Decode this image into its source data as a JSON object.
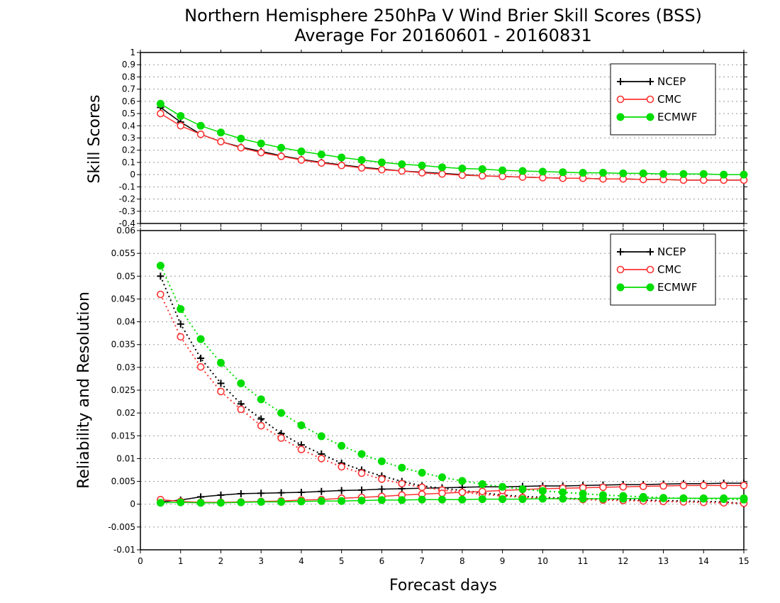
{
  "chart_data": [
    {
      "type": "line",
      "title_line1": "Northern Hemisphere 250hPa V Wind Brier Skill Scores (BSS)",
      "title_line2": "Average For 20160601 - 20160831",
      "ylabel": "Skill Scores",
      "xlabel": "",
      "ylim": [
        -0.4,
        1
      ],
      "xlim": [
        0,
        15
      ],
      "grid": true,
      "grid_style": "dotted horizontal",
      "legend_position": "top-right",
      "y_ticks": [
        "1",
        "0.9",
        "0.8",
        "0.7",
        "0.6",
        "0.5",
        "0.4",
        "0.3",
        "0.2",
        "0.1",
        "0",
        "-0.1",
        "-0.2",
        "-0.3",
        "-0.4"
      ],
      "x": [
        0.5,
        1,
        1.5,
        2,
        2.5,
        3,
        3.5,
        4,
        4.5,
        5,
        5.5,
        6,
        6.5,
        7,
        7.5,
        8,
        8.5,
        9,
        9.5,
        10,
        10.5,
        11,
        11.5,
        12,
        12.5,
        13,
        13.5,
        14,
        14.5,
        15
      ],
      "series": [
        {
          "name": "NCEP",
          "color": "#000000",
          "marker": "plus",
          "style": "solid",
          "values": [
            0.55,
            0.43,
            0.33,
            0.27,
            0.225,
            0.19,
            0.155,
            0.125,
            0.1,
            0.08,
            0.06,
            0.045,
            0.03,
            0.02,
            0.01,
            0.0,
            -0.01,
            -0.015,
            -0.02,
            -0.025,
            -0.03,
            -0.03,
            -0.035,
            -0.035,
            -0.04,
            -0.04,
            -0.045,
            -0.045,
            -0.045,
            -0.045
          ]
        },
        {
          "name": "CMC",
          "color": "#ff3333",
          "marker": "circle-open",
          "style": "solid",
          "values": [
            0.5,
            0.4,
            0.33,
            0.27,
            0.22,
            0.18,
            0.15,
            0.12,
            0.095,
            0.075,
            0.055,
            0.04,
            0.03,
            0.015,
            0.005,
            -0.005,
            -0.01,
            -0.015,
            -0.02,
            -0.025,
            -0.03,
            -0.03,
            -0.035,
            -0.035,
            -0.04,
            -0.04,
            -0.045,
            -0.045,
            -0.045,
            -0.045
          ]
        },
        {
          "name": "ECMWF",
          "color": "#00dd00",
          "marker": "circle-filled",
          "style": "solid",
          "values": [
            0.58,
            0.48,
            0.4,
            0.345,
            0.295,
            0.255,
            0.22,
            0.19,
            0.165,
            0.14,
            0.12,
            0.1,
            0.085,
            0.075,
            0.06,
            0.05,
            0.045,
            0.035,
            0.03,
            0.025,
            0.02,
            0.015,
            0.015,
            0.01,
            0.01,
            0.005,
            0.005,
            0.005,
            0.0,
            0.0
          ]
        }
      ]
    },
    {
      "type": "line",
      "ylabel": "Reliability and Resolution",
      "xlabel": "Forecast days",
      "ylim": [
        -0.01,
        0.06
      ],
      "xlim": [
        0,
        15
      ],
      "grid": true,
      "grid_style": "dotted horizontal",
      "legend_position": "top-right",
      "y_ticks": [
        "0.06",
        "0.055",
        "0.05",
        "0.045",
        "0.04",
        "0.035",
        "0.03",
        "0.025",
        "0.02",
        "0.015",
        "0.01",
        "0.005",
        "0",
        "-0.005",
        "-0.01"
      ],
      "x_ticks": [
        "0",
        "1",
        "2",
        "3",
        "4",
        "5",
        "6",
        "7",
        "8",
        "9",
        "10",
        "11",
        "12",
        "13",
        "14",
        "15"
      ],
      "x": [
        0.5,
        1,
        1.5,
        2,
        2.5,
        3,
        3.5,
        4,
        4.5,
        5,
        5.5,
        6,
        6.5,
        7,
        7.5,
        8,
        8.5,
        9,
        9.5,
        10,
        10.5,
        11,
        11.5,
        12,
        12.5,
        13,
        13.5,
        14,
        14.5,
        15
      ],
      "legend": [
        {
          "name": "NCEP",
          "color": "#000000",
          "marker": "plus"
        },
        {
          "name": "CMC",
          "color": "#ff3333",
          "marker": "circle-open"
        },
        {
          "name": "ECMWF",
          "color": "#00dd00",
          "marker": "circle-filled"
        }
      ],
      "series": [
        {
          "name": "NCEP",
          "color": "#000000",
          "marker": "plus",
          "style": "dotted",
          "kind": "reliability",
          "values": [
            0.05,
            0.0395,
            0.032,
            0.0265,
            0.022,
            0.0187,
            0.0155,
            0.013,
            0.011,
            0.009,
            0.0075,
            0.0062,
            0.005,
            0.004,
            0.0035,
            0.003,
            0.0025,
            0.002,
            0.0017,
            0.0015,
            0.0013,
            0.0012,
            0.0011,
            0.001,
            0.0009,
            0.0008,
            0.0007,
            0.0006,
            0.0005,
            0.0001
          ]
        },
        {
          "name": "NCEP",
          "color": "#000000",
          "marker": "plus",
          "style": "solid",
          "kind": "resolution",
          "values": [
            0.0005,
            0.0009,
            0.0016,
            0.002,
            0.0023,
            0.0024,
            0.0025,
            0.0026,
            0.0028,
            0.003,
            0.0031,
            0.0033,
            0.0034,
            0.0035,
            0.0036,
            0.0037,
            0.0038,
            0.0038,
            0.0039,
            0.004,
            0.004,
            0.0041,
            0.0042,
            0.0043,
            0.0043,
            0.0044,
            0.0045,
            0.0045,
            0.0046,
            0.0046
          ]
        },
        {
          "name": "CMC",
          "color": "#ff3333",
          "marker": "circle-open",
          "style": "dotted",
          "kind": "reliability",
          "values": [
            0.046,
            0.0367,
            0.0301,
            0.0247,
            0.0208,
            0.0172,
            0.0145,
            0.012,
            0.01,
            0.0082,
            0.0068,
            0.0055,
            0.0045,
            0.0037,
            0.0031,
            0.0026,
            0.0022,
            0.0018,
            0.0015,
            0.0013,
            0.0012,
            0.001,
            0.0009,
            0.0008,
            0.0007,
            0.0006,
            0.0005,
            0.0004,
            0.0003,
            0.0002
          ]
        },
        {
          "name": "CMC",
          "color": "#ff3333",
          "marker": "circle-open",
          "style": "solid",
          "kind": "resolution",
          "values": [
            0.001,
            0.0006,
            0.0004,
            0.0004,
            0.0005,
            0.0006,
            0.0007,
            0.0009,
            0.001,
            0.0013,
            0.0015,
            0.0017,
            0.002,
            0.0022,
            0.0024,
            0.0026,
            0.0028,
            0.003,
            0.0032,
            0.0034,
            0.0035,
            0.0036,
            0.0037,
            0.0038,
            0.0039,
            0.004,
            0.0041,
            0.0041,
            0.0041,
            0.0041
          ]
        },
        {
          "name": "ECMWF",
          "color": "#00dd00",
          "marker": "circle-filled",
          "style": "dotted",
          "kind": "reliability",
          "values": [
            0.0523,
            0.0428,
            0.0362,
            0.031,
            0.0265,
            0.023,
            0.02,
            0.0173,
            0.0149,
            0.0128,
            0.011,
            0.0094,
            0.008,
            0.0069,
            0.0059,
            0.0051,
            0.0044,
            0.0038,
            0.0033,
            0.0029,
            0.0026,
            0.0023,
            0.002,
            0.0018,
            0.0016,
            0.0014,
            0.0013,
            0.0012,
            0.0011,
            0.001
          ]
        },
        {
          "name": "ECMWF",
          "color": "#00dd00",
          "marker": "circle-filled",
          "style": "solid",
          "kind": "resolution",
          "values": [
            0.0003,
            0.0004,
            0.0003,
            0.0003,
            0.0004,
            0.0005,
            0.0005,
            0.0006,
            0.0007,
            0.0007,
            0.0008,
            0.0009,
            0.0009,
            0.001,
            0.001,
            0.001,
            0.0011,
            0.0011,
            0.0011,
            0.0012,
            0.0012,
            0.0012,
            0.0012,
            0.0012,
            0.0013,
            0.0013,
            0.0013,
            0.0013,
            0.0013,
            0.0013
          ]
        }
      ]
    }
  ]
}
